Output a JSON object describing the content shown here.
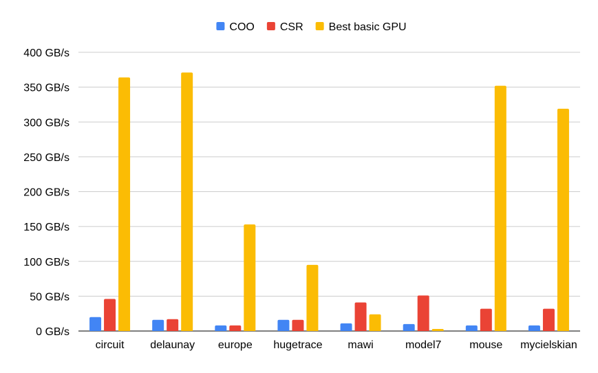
{
  "chart_data": {
    "type": "bar",
    "title": "",
    "xlabel": "",
    "ylabel": "",
    "categories": [
      "circuit",
      "delaunay",
      "europe",
      "hugetrace",
      "mawi",
      "model7",
      "mouse",
      "mycielskian"
    ],
    "series": [
      {
        "name": "COO",
        "color": "#4285f4",
        "values": [
          20,
          16,
          8,
          16,
          11,
          10,
          8,
          8
        ]
      },
      {
        "name": "CSR",
        "color": "#ea4335",
        "values": [
          46,
          17,
          8,
          16,
          41,
          51,
          32,
          32
        ]
      },
      {
        "name": "Best basic GPU",
        "color": "#fbbc04",
        "values": [
          364,
          371,
          153,
          95,
          24,
          3,
          352,
          319
        ]
      }
    ],
    "ylim": [
      0,
      400
    ],
    "yticks": [
      0,
      50,
      100,
      150,
      200,
      250,
      300,
      350,
      400
    ],
    "ytick_labels": [
      "0 GB/s",
      "50 GB/s",
      "100 GB/s",
      "150 GB/s",
      "200 GB/s",
      "250 GB/s",
      "300 GB/s",
      "350 GB/s",
      "400 GB/s"
    ],
    "grid": true,
    "legend": "top-center"
  }
}
